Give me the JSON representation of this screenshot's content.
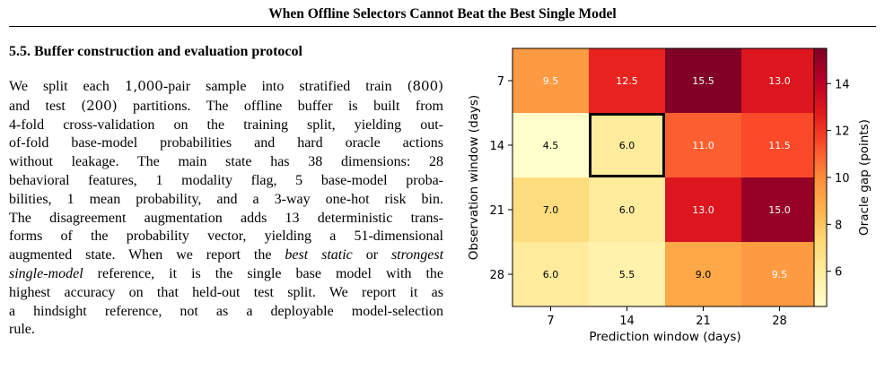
{
  "running_head": "When Offline Selectors Cannot Beat the Best Single Model",
  "section": {
    "heading": "5.5. Buffer construction and evaluation protocol",
    "lines": [
      [
        {
          "t": "We split each "
        },
        {
          "t": "1,000",
          "n": true
        },
        {
          "t": "-pair sample into stratified train "
        },
        {
          "t": "(800)",
          "n": true
        }
      ],
      [
        {
          "t": "and test "
        },
        {
          "t": "(200)",
          "n": true
        },
        {
          "t": " partitions. The offline buffer is built from"
        }
      ],
      [
        {
          "t": "4-fold cross-validation on the training split, yielding out-"
        }
      ],
      [
        {
          "t": "of-fold base-model probabilities and hard oracle actions"
        }
      ],
      [
        {
          "t": "without leakage. The main state has 38 dimensions: 28"
        }
      ],
      [
        {
          "t": "behavioral features, 1 modality flag, 5 base-model proba-"
        }
      ],
      [
        {
          "t": "bilities, 1 mean probability, and a 3-way one-hot risk bin."
        }
      ],
      [
        {
          "t": "The disagreement augmentation adds 13 deterministic trans-"
        }
      ],
      [
        {
          "t": "forms of the probability vector, yielding a 51-dimensional"
        }
      ],
      [
        {
          "t": "augmented state. When we report the "
        },
        {
          "t": "best static",
          "i": true
        },
        {
          "t": " or "
        },
        {
          "t": "strongest",
          "i": true
        }
      ],
      [
        {
          "t": "single-model",
          "i": true
        },
        {
          "t": " reference, it is the single base model with the"
        }
      ],
      [
        {
          "t": "highest accuracy on that held-out test split. We report it as"
        }
      ],
      [
        {
          "t": "a hindsight reference, not as a deployable model-selection"
        }
      ],
      [
        {
          "t": "rule."
        }
      ]
    ]
  },
  "chart_data": {
    "type": "heatmap",
    "x_categories": [
      "7",
      "14",
      "21",
      "28"
    ],
    "y_categories": [
      "7",
      "14",
      "21",
      "28"
    ],
    "values": [
      [
        9.5,
        12.5,
        15.5,
        13.0
      ],
      [
        4.5,
        6.0,
        11.0,
        11.5
      ],
      [
        7.0,
        6.0,
        13.0,
        15.0
      ],
      [
        6.0,
        5.5,
        9.0,
        9.5
      ]
    ],
    "cell_labels": [
      [
        "9.5",
        "12.5",
        "15.5",
        "13.0"
      ],
      [
        "4.5",
        "6.0",
        "11.0",
        "11.5"
      ],
      [
        "7.0",
        "6.0",
        "13.0",
        "15.0"
      ],
      [
        "6.0",
        "5.5",
        "9.0",
        "9.5"
      ]
    ],
    "highlight": {
      "x": "14",
      "y": "14"
    },
    "xlabel": "Prediction window (days)",
    "ylabel": "Observation window (days)",
    "colorbar": {
      "label": "Oracle gap (points)",
      "range": [
        4.5,
        15.5
      ],
      "ticks": [
        6,
        8,
        10,
        12,
        14
      ],
      "tick_labels": [
        "6",
        "8",
        "10",
        "12",
        "14"
      ],
      "colormap": "YlOrRd"
    }
  }
}
